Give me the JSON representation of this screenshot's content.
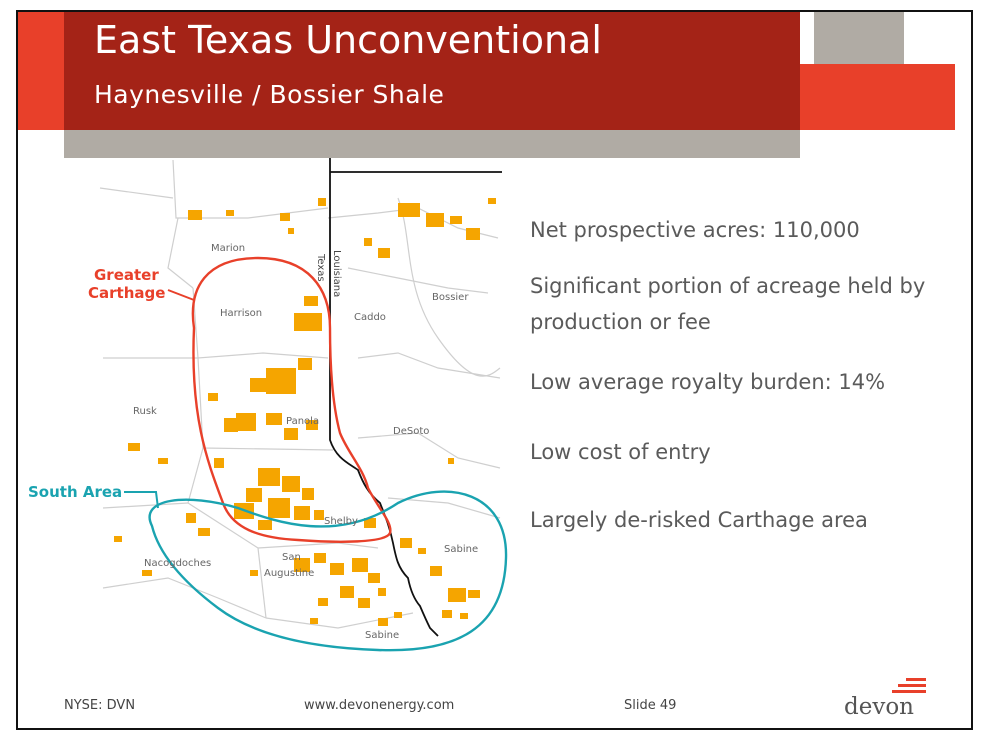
{
  "slide": {
    "title": "East Texas Unconventional",
    "subtitle": "Haynesville / Bossier Shale"
  },
  "map": {
    "county_labels": [
      "Marion",
      "Harrison",
      "Rusk",
      "Panola",
      "Caddo",
      "Bossier",
      "DeSoto",
      "Shelby",
      "Nacogdoches",
      "San",
      "Augustine",
      "Sabine",
      "Sabine"
    ],
    "state_labels": [
      "Texas",
      "Louisiana"
    ],
    "regions": {
      "greater_carthage_line1": "Greater",
      "greater_carthage_line2": "Carthage",
      "south_area": "South Area"
    },
    "colors": {
      "acreage": "#f5a500",
      "greater_carthage_outline": "#e8402a",
      "south_area_outline": "#1aa3b0",
      "state_line": "#111111",
      "county_lines": "#cfcfcf"
    }
  },
  "bullets": [
    "Net prospective acres: 110,000",
    "Significant portion of acreage held by",
    "production or fee",
    "Low average royalty burden: 14%",
    "Low cost of entry",
    "Largely de-risked Carthage area"
  ],
  "footer": {
    "ticker": "NYSE: DVN",
    "url": "www.devonenergy.com",
    "slide_number": "Slide 49",
    "logo": "devon"
  }
}
